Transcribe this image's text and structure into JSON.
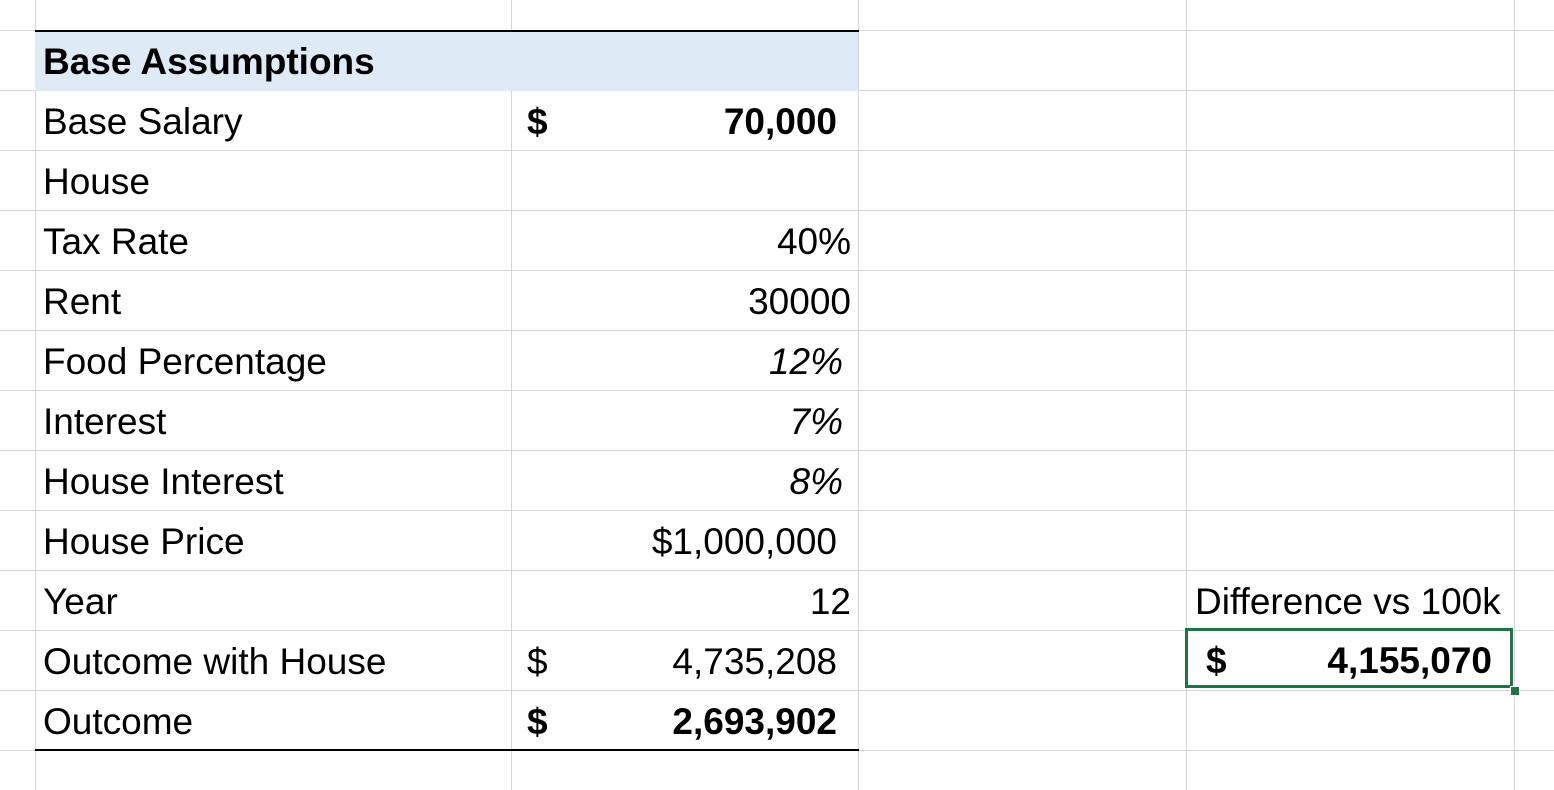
{
  "table": {
    "header": "Base Assumptions",
    "rows": [
      {
        "label": "Base Salary",
        "currency": "$",
        "value": "70,000"
      },
      {
        "label": "House",
        "currency": "",
        "value": ""
      },
      {
        "label": "Tax Rate",
        "currency": "",
        "value": "40%"
      },
      {
        "label": "Rent",
        "currency": "",
        "value": "30000"
      },
      {
        "label": "Food Percentage",
        "currency": "",
        "value": "12%"
      },
      {
        "label": "Interest",
        "currency": "",
        "value": "7%"
      },
      {
        "label": "House Interest",
        "currency": "",
        "value": "8%"
      },
      {
        "label": "House Price",
        "currency": "",
        "value": "$1,000,000"
      },
      {
        "label": "Year",
        "currency": "",
        "value": "12"
      },
      {
        "label": "Outcome with House",
        "currency": "$",
        "value": "4,735,208"
      },
      {
        "label": "Outcome",
        "currency": "$",
        "value": "2,693,902"
      }
    ]
  },
  "difference": {
    "label": "Difference vs 100k",
    "currency": "$",
    "value": "4,155,070"
  },
  "colors": {
    "header_fill": "#deebf7",
    "gridline": "#d6d6d6",
    "selection": "#217346"
  }
}
